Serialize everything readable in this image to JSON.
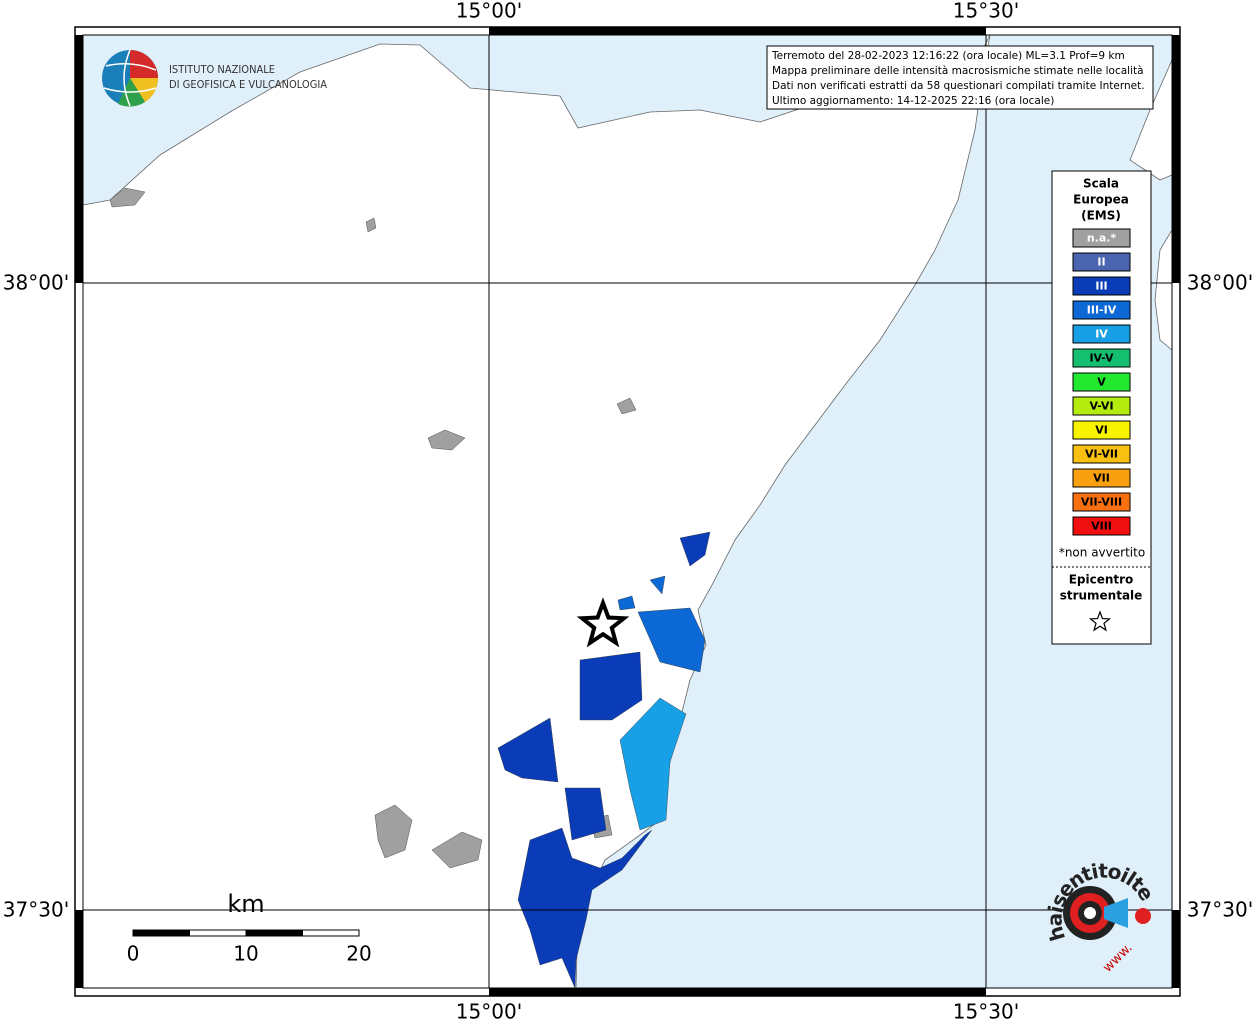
{
  "map": {
    "logo": {
      "line1": "ISTITUTO NAZIONALE",
      "line2": "DI GEOFISICA E VULCANOLOGIA"
    },
    "info": [
      "Terremoto del 28-02-2023 12:16:22 (ora locale) ML=3.1 Prof=9 km",
      "Mappa preliminare delle intensità macrosismiche stimate nelle località",
      "Dati non verificati estratti da 58 questionari compilati tramite Internet.",
      "Ultimo aggiornamento: 14-12-2025 22:16 (ora locale)"
    ],
    "lon_labels": [
      "15°00'",
      "15°30'"
    ],
    "lat_labels": [
      "38°00'",
      "37°30'"
    ],
    "legend": {
      "title": [
        "Scala",
        "Europea",
        "(EMS)"
      ],
      "items": [
        {
          "label": "n.a.*",
          "color": "#a0a0a0"
        },
        {
          "label": "II",
          "color": "#4a64b0"
        },
        {
          "label": "III",
          "color": "#0a3cb8"
        },
        {
          "label": "III-IV",
          "color": "#0b68d4"
        },
        {
          "label": "IV",
          "color": "#18a0e6"
        },
        {
          "label": "IV-V",
          "color": "#14c070"
        },
        {
          "label": "V",
          "color": "#22e830"
        },
        {
          "label": "V-VI",
          "color": "#b4ec10"
        },
        {
          "label": "VI",
          "color": "#f8f400"
        },
        {
          "label": "VI-VII",
          "color": "#f8c010"
        },
        {
          "label": "VII",
          "color": "#f8a010"
        },
        {
          "label": "VII-VIII",
          "color": "#f87010"
        },
        {
          "label": "VIII",
          "color": "#f01010"
        }
      ],
      "note": "*non avvertito",
      "epicenter": [
        "Epicentro",
        "strumentale"
      ]
    },
    "scale": {
      "unit": "km",
      "ticks": [
        0,
        10,
        20
      ]
    },
    "badge": {
      "prefix": "www.",
      "text": "haisentitoilterremoto.it"
    }
  }
}
